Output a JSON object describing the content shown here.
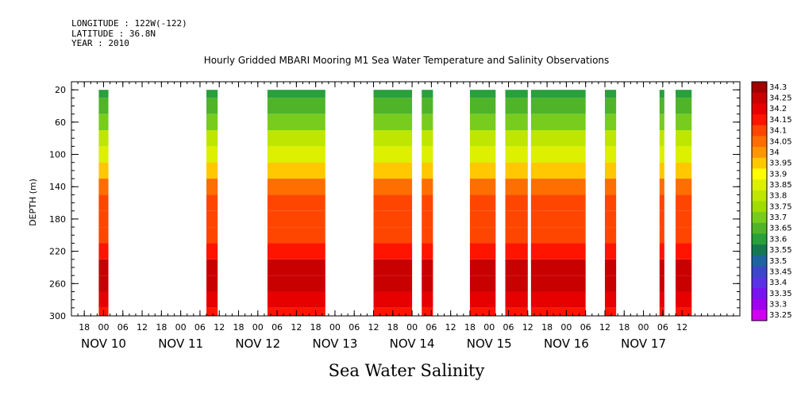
{
  "header": {
    "longitude": "LONGITUDE : 122W(-122)",
    "latitude": "LATITUDE : 36.8N",
    "year": "YEAR : 2010"
  },
  "chart_data": {
    "type": "heatmap",
    "title": "Hourly Gridded MBARI Mooring M1 Sea Water Temperature and Salinity Observations",
    "bottom_title": "Sea Water Salinity",
    "ylabel": "DEPTH (m)",
    "ylim": [
      300,
      10
    ],
    "y_ticks": [
      20,
      60,
      100,
      140,
      180,
      220,
      260,
      300
    ],
    "x_hour_ticks": [
      "18",
      "00",
      "06",
      "12",
      "18",
      "00",
      "06",
      "12",
      "18",
      "00",
      "06",
      "12",
      "18",
      "00",
      "06",
      "12",
      "18",
      "00",
      "06",
      "12",
      "18",
      "00",
      "06",
      "12",
      "18",
      "00",
      "06",
      "12",
      "18",
      "00",
      "06",
      "12"
    ],
    "x_day_labels": [
      "NOV 10",
      "NOV 11",
      "NOV 12",
      "NOV 13",
      "NOV 14",
      "NOV 15",
      "NOV 16",
      "NOV 17"
    ],
    "x_range_hours": [
      -10,
      198
    ],
    "colorbar": {
      "labels": [
        "34.3",
        "34.25",
        "34.2",
        "34.15",
        "34.1",
        "34.05",
        "34",
        "33.95",
        "33.9",
        "33.85",
        "33.8",
        "33.75",
        "33.7",
        "33.65",
        "33.6",
        "33.55",
        "33.5",
        "33.45",
        "33.4",
        "33.35",
        "33.3",
        "33.25"
      ],
      "colors": [
        "#a00000",
        "#c80000",
        "#e60000",
        "#ff1400",
        "#ff4600",
        "#ff6e00",
        "#ff9600",
        "#ffc800",
        "#ffff00",
        "#dcf000",
        "#bee600",
        "#a0dc00",
        "#78cc1e",
        "#50b428",
        "#28a03c",
        "#147850",
        "#1e64a0",
        "#3c46c8",
        "#5a32e6",
        "#7814f0",
        "#a000f0",
        "#d200f0"
      ]
    },
    "segments_hours": [
      [
        -1.5,
        1.5
      ],
      [
        32,
        35.5
      ],
      [
        51,
        69
      ],
      [
        84,
        96
      ],
      [
        99,
        102.5
      ],
      [
        114,
        122
      ],
      [
        125,
        132
      ],
      [
        133,
        150
      ],
      [
        156,
        159.5
      ],
      [
        173,
        174.5
      ],
      [
        178,
        183
      ]
    ],
    "profile_depths": [
      20,
      40,
      60,
      80,
      100,
      120,
      140,
      160,
      180,
      200,
      220,
      240,
      260,
      280,
      300
    ],
    "profile_values": [
      33.57,
      33.63,
      33.7,
      33.77,
      33.83,
      33.92,
      34.02,
      34.06,
      34.07,
      34.09,
      34.15,
      34.22,
      34.24,
      34.17,
      34.15
    ]
  }
}
